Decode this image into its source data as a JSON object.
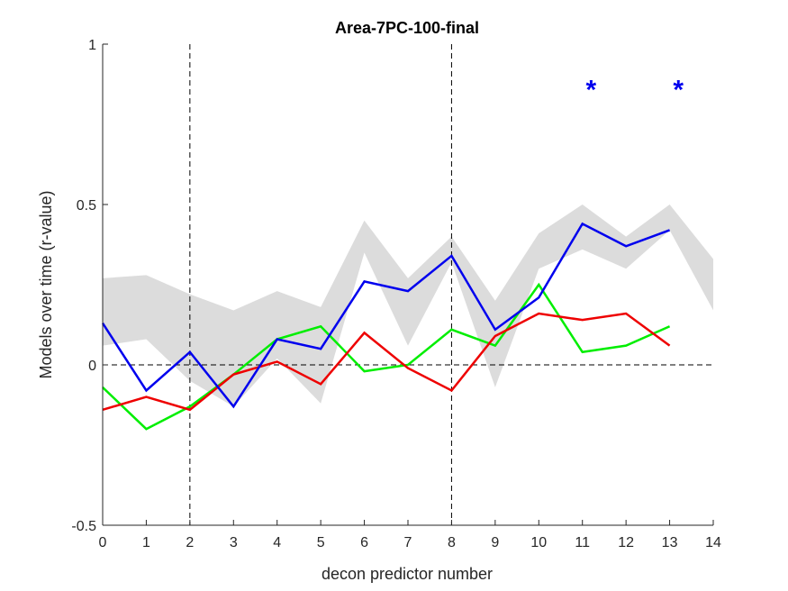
{
  "chart_data": {
    "type": "line",
    "title": "Area-7PC-100-final",
    "xlabel": "decon predictor number",
    "ylabel": "Models over time (r-value)",
    "xlim": [
      0,
      14
    ],
    "ylim": [
      -0.5,
      1
    ],
    "xticks": [
      0,
      1,
      2,
      3,
      4,
      5,
      6,
      7,
      8,
      9,
      10,
      11,
      12,
      13,
      14
    ],
    "xtick_labels": [
      "0",
      "1",
      "2",
      "3",
      "4",
      "5",
      "6",
      "7",
      "8",
      "9",
      "10",
      "11",
      "12",
      "13",
      "14"
    ],
    "yticks": [
      -0.5,
      0,
      0.5,
      1
    ],
    "ytick_labels": [
      "-0.5",
      "0",
      "0.5",
      "1"
    ],
    "grid": false,
    "vertical_dashed_lines": [
      2,
      8
    ],
    "horizontal_dashed_lines": [
      0
    ],
    "band": {
      "color": "#dcdcdc",
      "x": [
        0,
        1,
        2,
        3,
        4,
        5,
        6,
        7,
        8,
        9,
        10,
        11,
        12,
        13,
        14
      ],
      "upper": [
        0.27,
        0.28,
        0.22,
        0.17,
        0.23,
        0.18,
        0.45,
        0.27,
        0.4,
        0.2,
        0.41,
        0.5,
        0.4,
        0.5,
        0.33
      ],
      "lower": [
        0.06,
        0.08,
        -0.05,
        -0.13,
        0.02,
        -0.12,
        0.35,
        0.06,
        0.32,
        -0.07,
        0.3,
        0.36,
        0.3,
        0.42,
        0.17
      ]
    },
    "series": [
      {
        "color": "#00ee00",
        "x": [
          0,
          1,
          2,
          3,
          4,
          5,
          6,
          7,
          8,
          9,
          10,
          11,
          12,
          13
        ],
        "values": [
          -0.07,
          -0.2,
          -0.13,
          -0.03,
          0.08,
          0.12,
          -0.02,
          0.0,
          0.11,
          0.06,
          0.25,
          0.04,
          0.06,
          0.12
        ]
      },
      {
        "color": "#ee0000",
        "x": [
          0,
          1,
          2,
          3,
          4,
          5,
          6,
          7,
          8,
          9,
          10,
          11,
          12,
          13
        ],
        "values": [
          -0.14,
          -0.1,
          -0.14,
          -0.03,
          0.01,
          -0.06,
          0.1,
          -0.01,
          -0.08,
          0.09,
          0.16,
          0.14,
          0.16,
          0.06
        ]
      },
      {
        "color": "#0000ee",
        "x": [
          0,
          1,
          2,
          3,
          4,
          5,
          6,
          7,
          8,
          9,
          10,
          11,
          12,
          13
        ],
        "values": [
          0.13,
          -0.08,
          0.04,
          -0.13,
          0.08,
          0.05,
          0.26,
          0.23,
          0.34,
          0.11,
          0.21,
          0.44,
          0.37,
          0.42
        ]
      }
    ],
    "annotations": [
      {
        "text": "*",
        "x": 11.2,
        "y": 0.87,
        "color": "#0000ee"
      },
      {
        "text": "*",
        "x": 13.2,
        "y": 0.87,
        "color": "#0000ee"
      }
    ]
  }
}
